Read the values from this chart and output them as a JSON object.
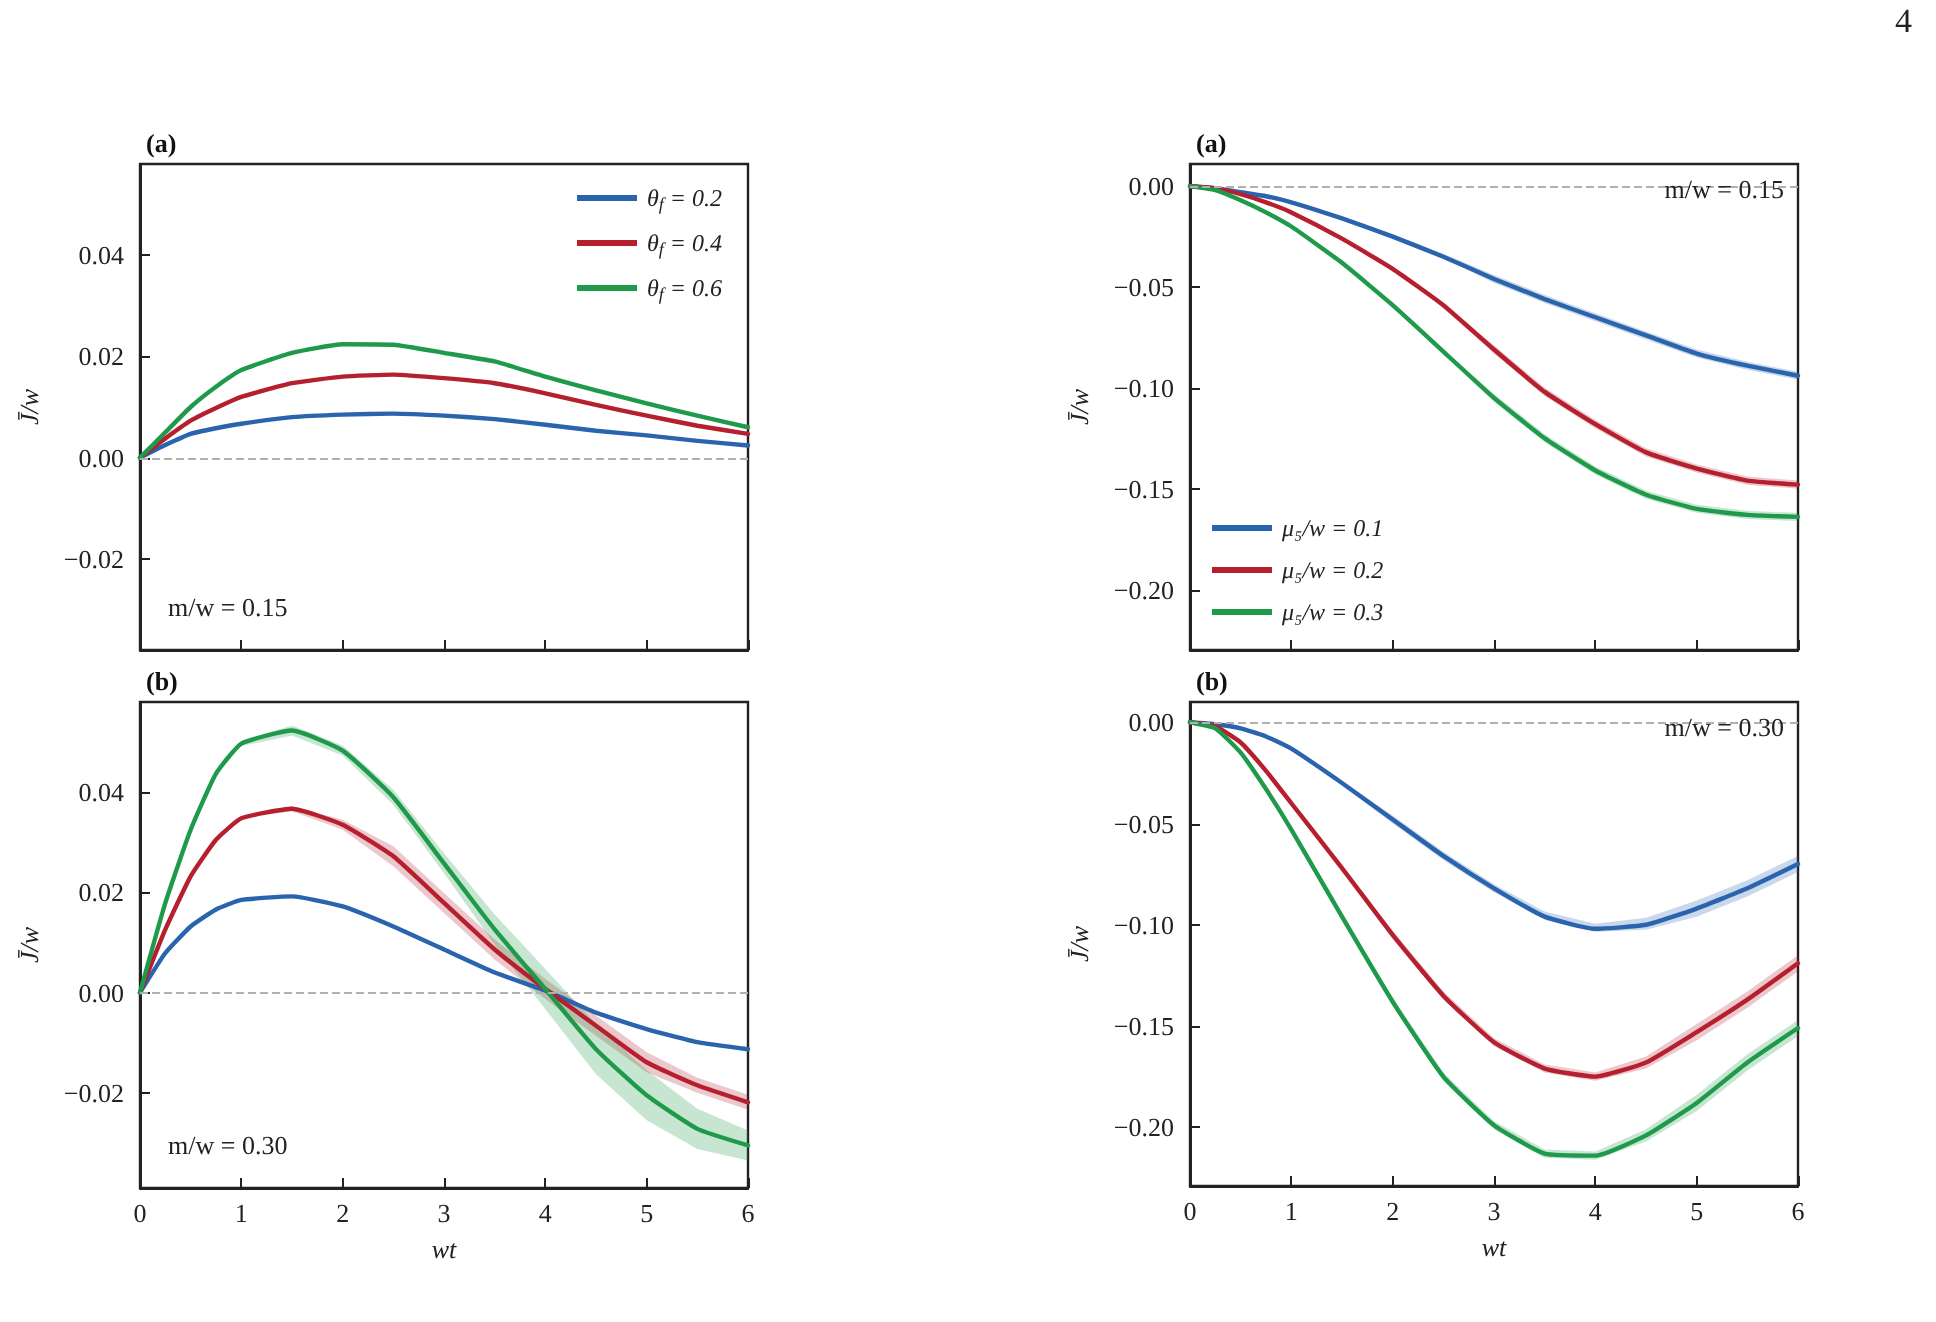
{
  "chart_data": [
    {
      "type": "line",
      "title": "(a)",
      "ylabel": "J̄/w",
      "annotations": [
        "m/w = 0.15"
      ],
      "x": [
        0,
        0.25,
        0.5,
        0.75,
        1,
        1.5,
        2,
        2.5,
        3,
        3.5,
        4,
        4.5,
        5,
        5.5,
        6
      ],
      "xlim": [
        0,
        6
      ],
      "xticks": [
        0,
        1,
        2,
        3,
        4,
        5,
        6
      ],
      "ylim": [
        -0.038,
        0.058
      ],
      "yticks": [
        {
          "value": -0.02,
          "label": "−0.02"
        },
        {
          "value": 0,
          "label": "0.00"
        },
        {
          "value": 0.02,
          "label": "0.02"
        },
        {
          "value": 0.04,
          "label": "0.04"
        }
      ],
      "tick_labels": "y",
      "grid": false,
      "legend": "top right",
      "marker": "none",
      "line_style": "solid",
      "ref_lines": [
        {
          "axis": "y",
          "value": 0,
          "color": "#b0b0b0",
          "line_style": "dashed"
        }
      ],
      "series": [
        {
          "name": "θ$_{f}$ = 0.2",
          "color": "#2b64ae",
          "values": [
            0,
            0.0025,
            0.0047,
            0.0058,
            0.0067,
            0.008,
            0.0085,
            0.0087,
            0.0083,
            0.0076,
            0.0065,
            0.0053,
            0.0044,
            0.0033,
            0.0024
          ]
        },
        {
          "name": "θ$_{f}$ = 0.4",
          "color": "#b51f2e",
          "values": [
            0,
            0.0038,
            0.0073,
            0.0098,
            0.012,
            0.0147,
            0.016,
            0.0164,
            0.0157,
            0.0147,
            0.0127,
            0.0104,
            0.0083,
            0.0063,
            0.0047
          ]
        },
        {
          "name": "θ$_{f}$ = 0.6",
          "color": "#1f9a4b",
          "values": [
            0,
            0.005,
            0.01,
            0.014,
            0.0173,
            0.0207,
            0.0224,
            0.0223,
            0.0207,
            0.019,
            0.016,
            0.0133,
            0.0107,
            0.0083,
            0.006
          ]
        }
      ]
    },
    {
      "type": "line",
      "title": "(a)",
      "ylabel": "J̄/w",
      "annotations": [
        "4",
        "m/w = 0.15"
      ],
      "x": [
        0,
        0.25,
        0.5,
        0.75,
        1,
        1.5,
        2,
        2.5,
        3,
        3.5,
        4,
        4.5,
        5,
        5.5,
        6
      ],
      "xlim": [
        0,
        6
      ],
      "xticks": [
        0,
        1,
        2,
        3,
        4,
        5,
        6
      ],
      "ylim": [
        -0.23,
        0.011
      ],
      "yticks": [
        {
          "value": -0.2,
          "label": "−0.20"
        },
        {
          "value": -0.15,
          "label": "−0.15"
        },
        {
          "value": -0.1,
          "label": "−0.10"
        },
        {
          "value": -0.05,
          "label": "−0.05"
        },
        {
          "value": 0,
          "label": "0.00"
        }
      ],
      "tick_labels": "y",
      "grid": false,
      "legend": "bottom left",
      "marker": "none",
      "line_style": "solid",
      "ref_lines": [
        {
          "axis": "y",
          "value": 0,
          "color": "#b0b0b0",
          "line_style": "dashed"
        }
      ],
      "series": [
        {
          "name": "μ₅/w = 0.1",
          "color": "#2b64ae",
          "values": [
            0,
            -0.001,
            -0.003,
            -0.005,
            -0.008,
            -0.016,
            -0.025,
            -0.035,
            -0.046,
            -0.056,
            -0.065,
            -0.074,
            -0.083,
            -0.089,
            -0.094
          ],
          "lower": [
            0,
            -0.0006,
            -0.0026,
            -0.005,
            -0.0082,
            -0.0158,
            -0.0257,
            -0.0355,
            -0.048,
            -0.0579,
            -0.067,
            -0.076,
            -0.085,
            -0.091,
            -0.096
          ],
          "upper": [
            0,
            -0.0006,
            -0.0026,
            -0.005,
            -0.0082,
            -0.0158,
            -0.0237,
            -0.0335,
            -0.044,
            -0.0539,
            -0.063,
            -0.072,
            -0.081,
            -0.087,
            -0.092
          ]
        },
        {
          "name": "μ₅/w = 0.2",
          "color": "#b51f2e",
          "values": [
            0,
            -0.001,
            -0.004,
            -0.008,
            -0.013,
            -0.026,
            -0.041,
            -0.059,
            -0.081,
            -0.102,
            -0.118,
            -0.132,
            -0.14,
            -0.146,
            -0.148
          ],
          "lower": [
            0,
            -0.001,
            -0.004,
            -0.008,
            -0.013,
            -0.026,
            -0.042,
            -0.06,
            -0.083,
            -0.104,
            -0.12,
            -0.134,
            -0.142,
            -0.148,
            -0.15
          ],
          "upper": [
            0,
            -0.001,
            -0.004,
            -0.008,
            -0.013,
            -0.026,
            -0.04,
            -0.058,
            -0.079,
            -0.1,
            -0.116,
            -0.13,
            -0.138,
            -0.144,
            -0.146
          ]
        },
        {
          "name": "μ₅/w = 0.3",
          "color": "#1f9a4b",
          "values": [
            0,
            -0.002,
            -0.007,
            -0.013,
            -0.02,
            -0.038,
            -0.059,
            -0.082,
            -0.105,
            -0.125,
            -0.141,
            -0.153,
            -0.16,
            -0.163,
            -0.164
          ],
          "lower": [
            0,
            -0.0015,
            -0.0066,
            -0.013,
            -0.02,
            -0.038,
            -0.06,
            -0.083,
            -0.107,
            -0.127,
            -0.143,
            -0.155,
            -0.162,
            -0.165,
            -0.166
          ],
          "upper": [
            0,
            -0.0015,
            -0.0066,
            -0.013,
            -0.02,
            -0.038,
            -0.058,
            -0.081,
            -0.103,
            -0.123,
            -0.139,
            -0.151,
            -0.158,
            -0.161,
            -0.162
          ]
        }
      ]
    },
    {
      "type": "line",
      "title": "(b)",
      "xlabel": "wt",
      "ylabel": "J̄/w",
      "annotations": [
        "m/w = 0.30"
      ],
      "x": [
        0,
        0.25,
        0.5,
        0.75,
        1,
        1.5,
        2,
        2.5,
        3,
        3.5,
        4,
        4.5,
        5,
        5.5,
        6
      ],
      "xlim": [
        0,
        6
      ],
      "xticks": [
        0,
        1,
        2,
        3,
        4,
        5,
        6
      ],
      "ylim": [
        -0.039,
        0.058
      ],
      "yticks": [
        {
          "value": -0.02,
          "label": "−0.02"
        },
        {
          "value": 0,
          "label": "0.00"
        },
        {
          "value": 0.02,
          "label": "0.02"
        },
        {
          "value": 0.04,
          "label": "0.04"
        }
      ],
      "grid": false,
      "marker": "none",
      "line_style": "solid",
      "ref_lines": [
        {
          "axis": "y",
          "value": 0,
          "color": "#b0b0b0",
          "line_style": "dashed"
        }
      ],
      "series": [
        {
          "color": "#2b64ae",
          "values": [
            0,
            0.0079,
            0.0132,
            0.0166,
            0.0185,
            0.0192,
            0.0172,
            0.0132,
            0.0086,
            0.004,
            0.0004,
            -0.004,
            -0.0073,
            -0.0099,
            -0.0113
          ]
        },
        {
          "color": "#b51f2e",
          "values": [
            0,
            0.0126,
            0.0232,
            0.0305,
            0.0348,
            0.0367,
            0.0335,
            0.0272,
            0.0179,
            0.0086,
            0.0007,
            -0.0066,
            -0.0139,
            -0.0185,
            -0.0219
          ],
          "lower": [
            0,
            0.0126,
            0.0232,
            0.0305,
            0.0348,
            0.0362,
            0.0325,
            0.0252,
            0.0159,
            0.0066,
            -0.0013,
            -0.0086,
            -0.0159,
            -0.02,
            -0.0234
          ],
          "upper": [
            0,
            0.0126,
            0.0232,
            0.0305,
            0.0348,
            0.0372,
            0.0345,
            0.0292,
            0.0199,
            0.0106,
            0.0027,
            -0.0046,
            -0.0119,
            -0.017,
            -0.0204
          ]
        },
        {
          "color": "#1f9a4b",
          "values": [
            0,
            0.0179,
            0.0325,
            0.0437,
            0.0497,
            0.0523,
            0.0483,
            0.039,
            0.0258,
            0.0126,
            0.0007,
            -0.0113,
            -0.0205,
            -0.0272,
            -0.0305
          ],
          "lower": [
            0,
            0.0179,
            0.0325,
            0.0437,
            0.0492,
            0.0513,
            0.0473,
            0.0375,
            0.0238,
            0.0096,
            -0.0033,
            -0.0163,
            -0.0255,
            -0.0312,
            -0.0335
          ],
          "upper": [
            0,
            0.0179,
            0.0325,
            0.0437,
            0.0502,
            0.0533,
            0.0493,
            0.0405,
            0.0278,
            0.0156,
            0.0047,
            -0.0063,
            -0.0155,
            -0.0232,
            -0.0275
          ]
        }
      ]
    },
    {
      "type": "line",
      "title": "(b)",
      "xlabel": "wt",
      "ylabel": "J̄/w",
      "annotations": [
        "m/w = 0.30"
      ],
      "x": [
        0,
        0.25,
        0.5,
        0.75,
        1,
        1.5,
        2,
        2.5,
        3,
        3.5,
        4,
        4.5,
        5,
        5.5,
        6
      ],
      "xlim": [
        0,
        6
      ],
      "xticks": [
        0,
        1,
        2,
        3,
        4,
        5,
        6
      ],
      "ylim": [
        -0.229,
        0.01
      ],
      "yticks": [
        {
          "value": -0.2,
          "label": "−0.20"
        },
        {
          "value": -0.15,
          "label": "−0.15"
        },
        {
          "value": -0.1,
          "label": "−0.10"
        },
        {
          "value": -0.05,
          "label": "−0.05"
        },
        {
          "value": 0,
          "label": "0.00"
        }
      ],
      "grid": false,
      "marker": "none",
      "line_style": "solid",
      "ref_lines": [
        {
          "axis": "y",
          "value": 0,
          "color": "#b0b0b0",
          "line_style": "dashed"
        }
      ],
      "series": [
        {
          "color": "#2b64ae",
          "values": [
            0,
            -0.001,
            -0.003,
            -0.007,
            -0.013,
            -0.03,
            -0.048,
            -0.066,
            -0.082,
            -0.096,
            -0.102,
            -0.1,
            -0.092,
            -0.082,
            -0.07
          ],
          "lower": [
            0,
            -0.0008,
            -0.003,
            -0.007,
            -0.013,
            -0.031,
            -0.05,
            -0.068,
            -0.084,
            -0.0975,
            -0.1035,
            -0.1025,
            -0.096,
            -0.086,
            -0.074
          ],
          "upper": [
            0,
            -0.0008,
            -0.003,
            -0.007,
            -0.013,
            -0.029,
            -0.046,
            -0.064,
            -0.08,
            -0.0935,
            -0.0995,
            -0.0965,
            -0.088,
            -0.078,
            -0.066
          ]
        },
        {
          "color": "#b51f2e",
          "values": [
            0,
            -0.002,
            -0.01,
            -0.024,
            -0.04,
            -0.072,
            -0.105,
            -0.135,
            -0.158,
            -0.171,
            -0.175,
            -0.168,
            -0.153,
            -0.137,
            -0.119
          ],
          "lower": [
            0,
            -0.002,
            -0.01,
            -0.024,
            -0.04,
            -0.073,
            -0.107,
            -0.137,
            -0.16,
            -0.173,
            -0.177,
            -0.171,
            -0.157,
            -0.141,
            -0.123
          ],
          "upper": [
            0,
            -0.002,
            -0.01,
            -0.024,
            -0.04,
            -0.071,
            -0.103,
            -0.133,
            -0.156,
            -0.169,
            -0.173,
            -0.165,
            -0.149,
            -0.133,
            -0.115
          ]
        },
        {
          "color": "#1f9a4b",
          "values": [
            0,
            -0.003,
            -0.015,
            -0.033,
            -0.053,
            -0.096,
            -0.138,
            -0.175,
            -0.199,
            -0.213,
            -0.214,
            -0.204,
            -0.188,
            -0.168,
            -0.151
          ],
          "lower": [
            0,
            -0.003,
            -0.015,
            -0.033,
            -0.053,
            -0.0965,
            -0.14,
            -0.177,
            -0.201,
            -0.215,
            -0.216,
            -0.207,
            -0.192,
            -0.172,
            -0.155
          ],
          "upper": [
            0,
            -0.003,
            -0.015,
            -0.033,
            -0.053,
            -0.0945,
            -0.136,
            -0.173,
            -0.197,
            -0.211,
            -0.212,
            -0.201,
            -0.184,
            -0.164,
            -0.147
          ]
        }
      ]
    }
  ]
}
